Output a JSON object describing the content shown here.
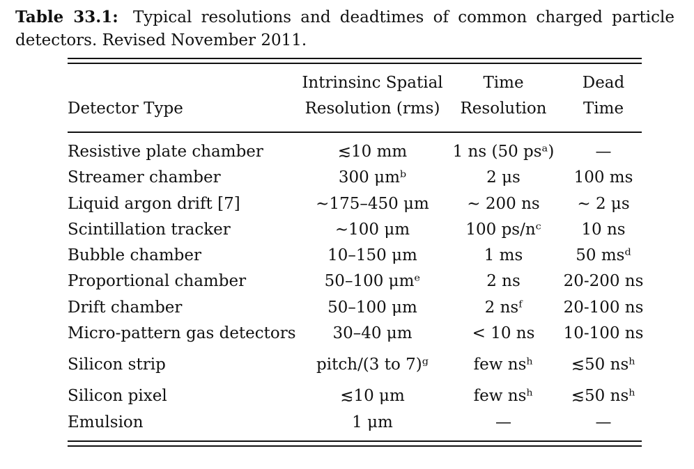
{
  "caption": {
    "label": "Table 33.1:",
    "text": "Typical resolutions and deadtimes of common charged particle detectors. Revised November 2011."
  },
  "table": {
    "headers": {
      "detector_type": "Detector Type",
      "spatial_line1": "Intrinsinc Spatial",
      "spatial_line2": "Resolution (rms)",
      "time_line1": "Time",
      "time_line2": "Resolution",
      "dead_line1": "Dead",
      "dead_line2": "Time"
    },
    "rows": [
      {
        "detector": "Resistive plate chamber",
        "spatial": "≲10 mm",
        "time": "1 ns (50 psᵃ)",
        "dead": "—"
      },
      {
        "detector": "Streamer chamber",
        "spatial": "300 μmᵇ",
        "time": "2 μs",
        "dead": "100 ms"
      },
      {
        "detector": "Liquid argon drift [7]",
        "spatial": "∼175–450 μm",
        "time": "∼ 200 ns",
        "dead": "∼ 2 μs"
      },
      {
        "detector": "Scintillation tracker",
        "spatial": "∼100 μm",
        "time": "100 ps/nᶜ",
        "dead": "10 ns"
      },
      {
        "detector": "Bubble chamber",
        "spatial": "10–150 μm",
        "time": "1 ms",
        "dead": "50 msᵈ"
      },
      {
        "detector": "Proportional chamber",
        "spatial": "50–100 μmᵉ",
        "time": "2 ns",
        "dead": "20-200 ns"
      },
      {
        "detector": "Drift chamber",
        "spatial": "50–100 μm",
        "time": "2 nsᶠ",
        "dead": "20-100 ns"
      },
      {
        "detector": "Micro-pattern gas detectors",
        "spatial": "30–40 μm",
        "time": "< 10 ns",
        "dead": "10-100 ns"
      },
      {
        "detector": "Silicon strip",
        "spatial": "pitch/(3 to 7)ᵍ",
        "time": "few nsʰ",
        "dead": "≲50 nsʰ"
      },
      {
        "detector": "Silicon pixel",
        "spatial": "≲10 μm",
        "time": "few nsʰ",
        "dead": "≲50 nsʰ"
      },
      {
        "detector": "Emulsion",
        "spatial": "1 μm",
        "time": "—",
        "dead": "—"
      }
    ]
  }
}
